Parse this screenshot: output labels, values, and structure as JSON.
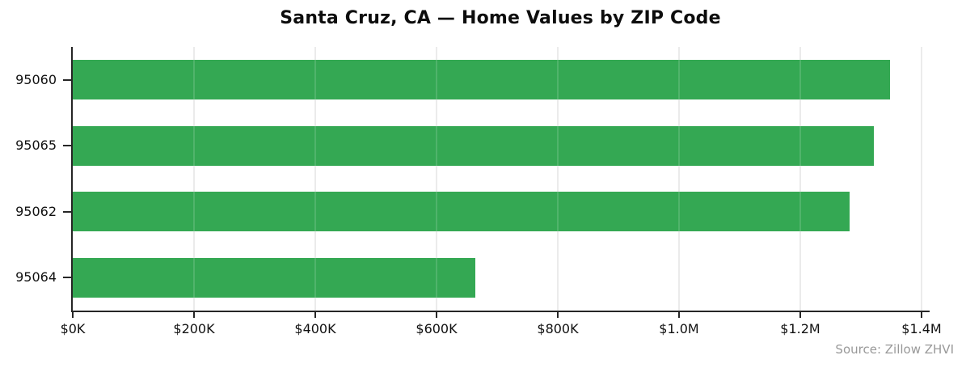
{
  "colors": {
    "bar": "#34a853",
    "grid": "#e8e8e8",
    "axis": "#262626",
    "tick_label": "#111111",
    "title_text": "#0d0d0d",
    "source_text": "#999999"
  },
  "chart_data": {
    "type": "bar",
    "orientation": "horizontal",
    "title": "Santa Cruz, CA — Home Values by ZIP Code",
    "xlabel": "",
    "ylabel": "",
    "categories": [
      "95060",
      "95065",
      "95062",
      "95064"
    ],
    "values": [
      1348000,
      1321000,
      1281000,
      664000
    ],
    "value_unit": "USD",
    "xlim": [
      0,
      1413000
    ],
    "x_ticks": [
      {
        "value": 0,
        "label": "$0K"
      },
      {
        "value": 200000,
        "label": "$200K"
      },
      {
        "value": 400000,
        "label": "$400K"
      },
      {
        "value": 600000,
        "label": "$600K"
      },
      {
        "value": 800000,
        "label": "$800K"
      },
      {
        "value": 1000000,
        "label": "$1.0M"
      },
      {
        "value": 1200000,
        "label": "$1.2M"
      },
      {
        "value": 1400000,
        "label": "$1.4M"
      }
    ],
    "grid": "vertical",
    "legend": "none",
    "source_note": "Source: Zillow ZHVI"
  }
}
